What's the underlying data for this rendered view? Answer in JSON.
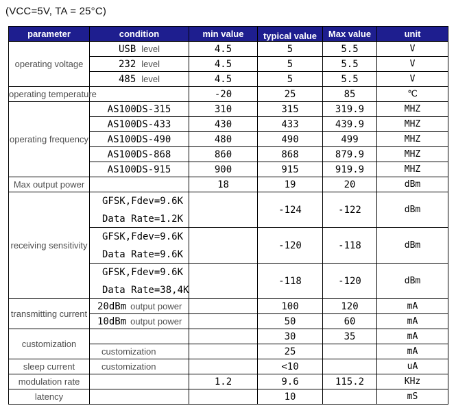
{
  "title": "(VCC=5V, TA = 25°C)",
  "colors": {
    "header_bg": "#1e1e8f",
    "header_text": "#ffffff",
    "border": "#000000",
    "param_text": "#4d4d4d"
  },
  "header": {
    "parameter": "parameter",
    "condition": "condition",
    "min": "min value",
    "typical": "typical value",
    "max": "Max value",
    "unit": "unit"
  },
  "groups": [
    {
      "parameter": "operating voltage",
      "rows": [
        {
          "cond_serif": "USB",
          "cond_sans": "level",
          "min": "4.5",
          "typical": "5",
          "max": "5.5",
          "unit": "V"
        },
        {
          "cond_serif": "232",
          "cond_sans": "level",
          "min": "4.5",
          "typical": "5",
          "max": "5.5",
          "unit": "V"
        },
        {
          "cond_serif": "485",
          "cond_sans": "level",
          "min": "4.5",
          "typical": "5",
          "max": "5.5",
          "unit": "V"
        }
      ]
    },
    {
      "parameter": "operating temperature",
      "rows": [
        {
          "min": "-20",
          "typical": "25",
          "max": "85",
          "unit": "℃"
        }
      ]
    },
    {
      "parameter": "operating frequency",
      "rows": [
        {
          "cond_serif": "AS100DS-315",
          "min": "310",
          "typical": "315",
          "max": "319.9",
          "unit": "MHZ"
        },
        {
          "cond_serif": "AS100DS-433",
          "min": "430",
          "typical": "433",
          "max": "439.9",
          "unit": "MHZ"
        },
        {
          "cond_serif": "AS100DS-490",
          "min": "480",
          "typical": "490",
          "max": "499",
          "unit": "MHZ"
        },
        {
          "cond_serif": "AS100DS-868",
          "min": "860",
          "typical": "868",
          "max": "879.9",
          "unit": "MHZ"
        },
        {
          "cond_serif": "AS100DS-915",
          "min": "900",
          "typical": "915",
          "max": "919.9",
          "unit": "MHZ"
        }
      ]
    },
    {
      "parameter": "Max output power",
      "rows": [
        {
          "min": "18",
          "typical": "19",
          "max": "20",
          "unit": "dBm"
        }
      ]
    },
    {
      "parameter": "receiving sensitivity",
      "rows": [
        {
          "cond_lines": [
            "GFSK,Fdev=9.6K",
            "Data Rate=1.2K"
          ],
          "typical": "-124",
          "max": "-122",
          "unit": "dBm"
        },
        {
          "cond_lines": [
            "GFSK,Fdev=9.6K",
            "Data Rate=9.6K"
          ],
          "typical": "-120",
          "max": "-118",
          "unit": "dBm"
        },
        {
          "cond_lines": [
            "GFSK,Fdev=9.6K",
            "Data Rate=38,4K"
          ],
          "typical": "-118",
          "max": "-120",
          "unit": "dBm"
        }
      ]
    },
    {
      "parameter": "transmitting current",
      "rows": [
        {
          "cond_serif": "20dBm",
          "cond_sans": "output power",
          "cond_align": "left",
          "typical": "100",
          "max": "120",
          "unit": "mA"
        },
        {
          "cond_serif": "10dBm",
          "cond_sans": "output power",
          "cond_align": "left",
          "typical": "50",
          "max": "60",
          "unit": "mA"
        }
      ]
    },
    {
      "parameter": "customization",
      "rows": [
        {
          "typical": "30",
          "max": "35",
          "unit": "mA"
        },
        {
          "cond_sans": "customization",
          "cond_align": "left",
          "typical": "25",
          "unit": "mA"
        }
      ]
    },
    {
      "parameter": "sleep current",
      "rows": [
        {
          "cond_sans": "customization",
          "cond_align": "left",
          "typical": "<10",
          "unit": "uA"
        }
      ]
    },
    {
      "parameter": "modulation rate",
      "rows": [
        {
          "min": "1.2",
          "typical": "9.6",
          "max": "115.2",
          "unit": "KHz"
        }
      ]
    },
    {
      "parameter": "latency",
      "rows": [
        {
          "typical": "10",
          "unit": "mS"
        }
      ]
    }
  ]
}
